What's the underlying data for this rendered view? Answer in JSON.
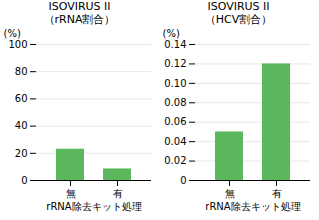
{
  "chart_data": [
    {
      "type": "bar",
      "title": "ISOVIRUS II",
      "subtitle": "（rRNA割合）",
      "ylabel": "(%)",
      "xlabel": "rRNA除去キット処理",
      "categories": [
        "無",
        "有"
      ],
      "values": [
        23,
        8.5
      ],
      "color": "#5cb85c",
      "ylim": [
        0,
        100
      ],
      "yticks": [
        0,
        20,
        40,
        60,
        80,
        100
      ],
      "grid": true
    },
    {
      "type": "bar",
      "title": "ISOVIRUS II",
      "subtitle": "（HCV割合）",
      "ylabel": "(%)",
      "xlabel": "rRNA除去キット処理",
      "categories": [
        "無",
        "有"
      ],
      "values": [
        0.05,
        0.12
      ],
      "color": "#5cb85c",
      "ylim": [
        0,
        0.14
      ],
      "yticks": [
        0,
        0.02,
        0.04,
        0.06,
        0.08,
        {
          "value": 0.1,
          "label": "0.10"
        },
        0.12,
        0.14
      ],
      "grid": true
    }
  ]
}
